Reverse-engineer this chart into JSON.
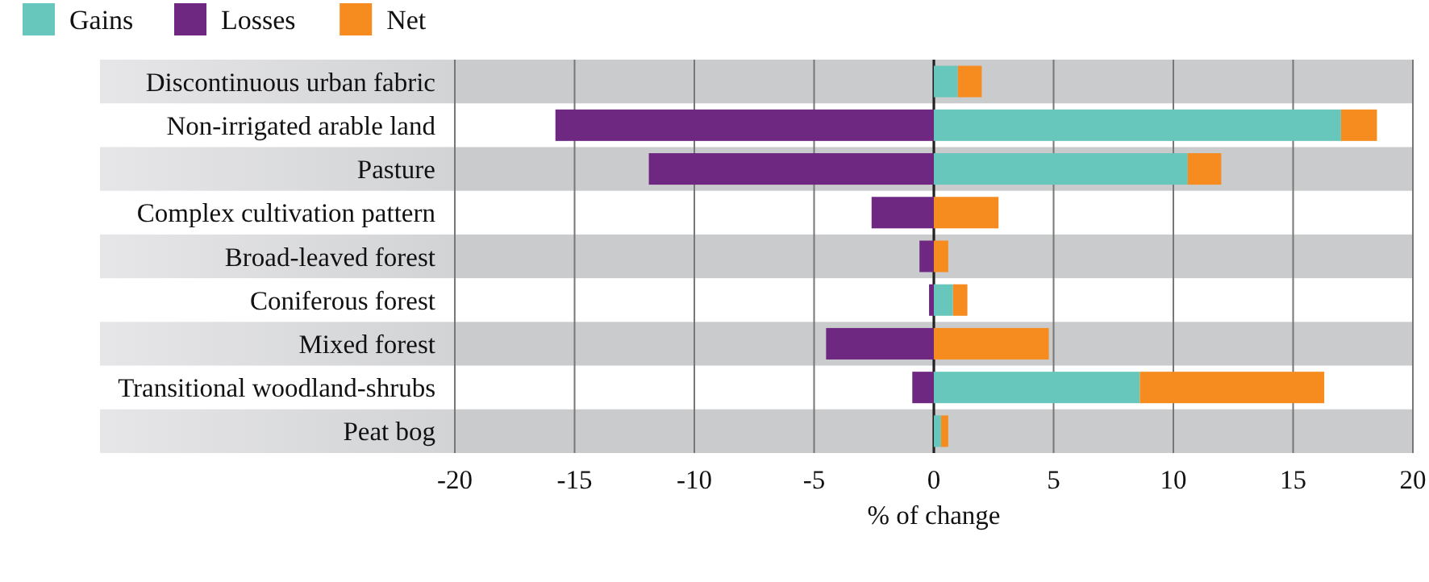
{
  "chart_data": {
    "type": "bar",
    "orientation": "horizontal",
    "stacked": true,
    "xlabel": "% of change",
    "categories": [
      "Discontinuous urban fabric",
      "Non-irrigated arable land",
      "Pasture",
      "Complex cultivation pattern",
      "Broad-leaved forest",
      "Coniferous forest",
      "Mixed forest",
      "Transitional woodland-shrubs",
      "Peat bog"
    ],
    "series": [
      {
        "name": "Gains",
        "color": "#68c7bc",
        "values": [
          1.0,
          17.0,
          10.6,
          0,
          0,
          0.8,
          0,
          8.6,
          0.3
        ]
      },
      {
        "name": "Losses",
        "color": "#6e2882",
        "values": [
          0,
          -15.8,
          -11.9,
          -2.6,
          -0.6,
          -0.2,
          -4.5,
          -0.9,
          0
        ]
      },
      {
        "name": "Net",
        "color": "#f68b1f",
        "values": [
          1.0,
          1.5,
          1.4,
          2.7,
          0.6,
          0.6,
          4.8,
          7.7,
          0.3
        ]
      }
    ],
    "bands": [
      {
        "axis": "y",
        "from": "Discontinuous urban fabric",
        "to": "Discontinuous urban fabric",
        "color": "#cacbcd"
      },
      {
        "axis": "y",
        "from": "Pasture",
        "to": "Pasture",
        "color": "#cacbcd"
      },
      {
        "axis": "y",
        "from": "Broad-leaved forest",
        "to": "Broad-leaved forest",
        "color": "#cacbcd"
      },
      {
        "axis": "y",
        "from": "Mixed forest",
        "to": "Mixed forest",
        "color": "#cacbcd"
      },
      {
        "axis": "y",
        "from": "Peat bog",
        "to": "Peat bog",
        "color": "#cacbcd"
      }
    ],
    "xlim": [
      -20,
      20
    ],
    "xticks": [
      -20,
      -15,
      -10,
      -5,
      0,
      5,
      10,
      15,
      20
    ],
    "grid": "x",
    "legend": "top left"
  }
}
